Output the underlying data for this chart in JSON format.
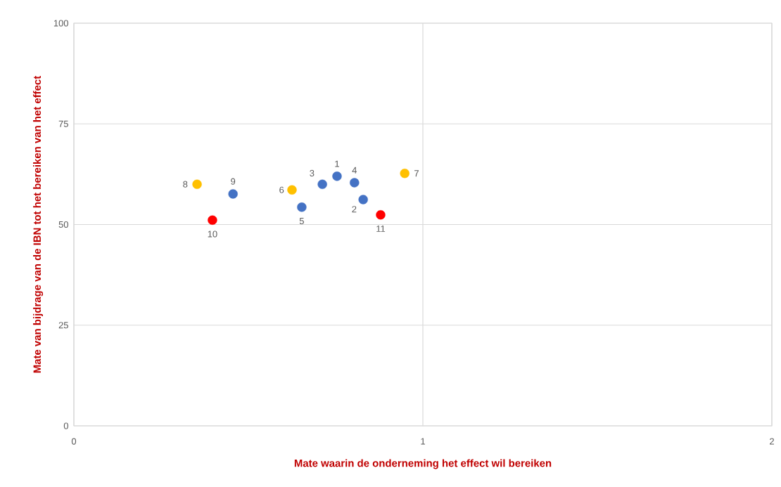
{
  "chart_data": {
    "type": "scatter",
    "xlabel": "Mate waarin de onderneming het effect wil bereiken",
    "ylabel": "Mate van bijdrage van de IBN tot het bereiken van het effect",
    "x": [
      0.754,
      0.829,
      0.712,
      0.804,
      0.653,
      0.625,
      0.948,
      0.353,
      0.456,
      0.397,
      0.879
    ],
    "values": [
      62.0,
      56.2,
      60.0,
      60.4,
      54.3,
      58.6,
      62.7,
      60.0,
      57.6,
      51.1,
      52.4
    ],
    "colors": [
      "#4472c4",
      "#4472c4",
      "#4472c4",
      "#4472c4",
      "#4472c4",
      "#ffc000",
      "#ffc000",
      "#ffc000",
      "#4472c4",
      "#ff0000",
      "#ff0000"
    ],
    "xlim": [
      0,
      2
    ],
    "ylim": [
      0,
      100
    ],
    "xticks": [
      0,
      1,
      2
    ],
    "yticks": [
      0,
      25,
      50,
      75,
      100
    ],
    "grid": true,
    "marker": "circle",
    "annotations": [
      {
        "text": "1",
        "x": 0.754,
        "y": 62.0
      },
      {
        "text": "2",
        "x": 0.829,
        "y": 56.2
      },
      {
        "text": "3",
        "x": 0.712,
        "y": 60.0
      },
      {
        "text": "4",
        "x": 0.804,
        "y": 60.4
      },
      {
        "text": "5",
        "x": 0.653,
        "y": 54.3
      },
      {
        "text": "6",
        "x": 0.625,
        "y": 58.6
      },
      {
        "text": "7",
        "x": 0.948,
        "y": 62.7
      },
      {
        "text": "8",
        "x": 0.353,
        "y": 60.0
      },
      {
        "text": "9",
        "x": 0.456,
        "y": 57.6
      },
      {
        "text": "10",
        "x": 0.397,
        "y": 51.1
      },
      {
        "text": "11",
        "x": 0.879,
        "y": 52.4
      }
    ]
  }
}
